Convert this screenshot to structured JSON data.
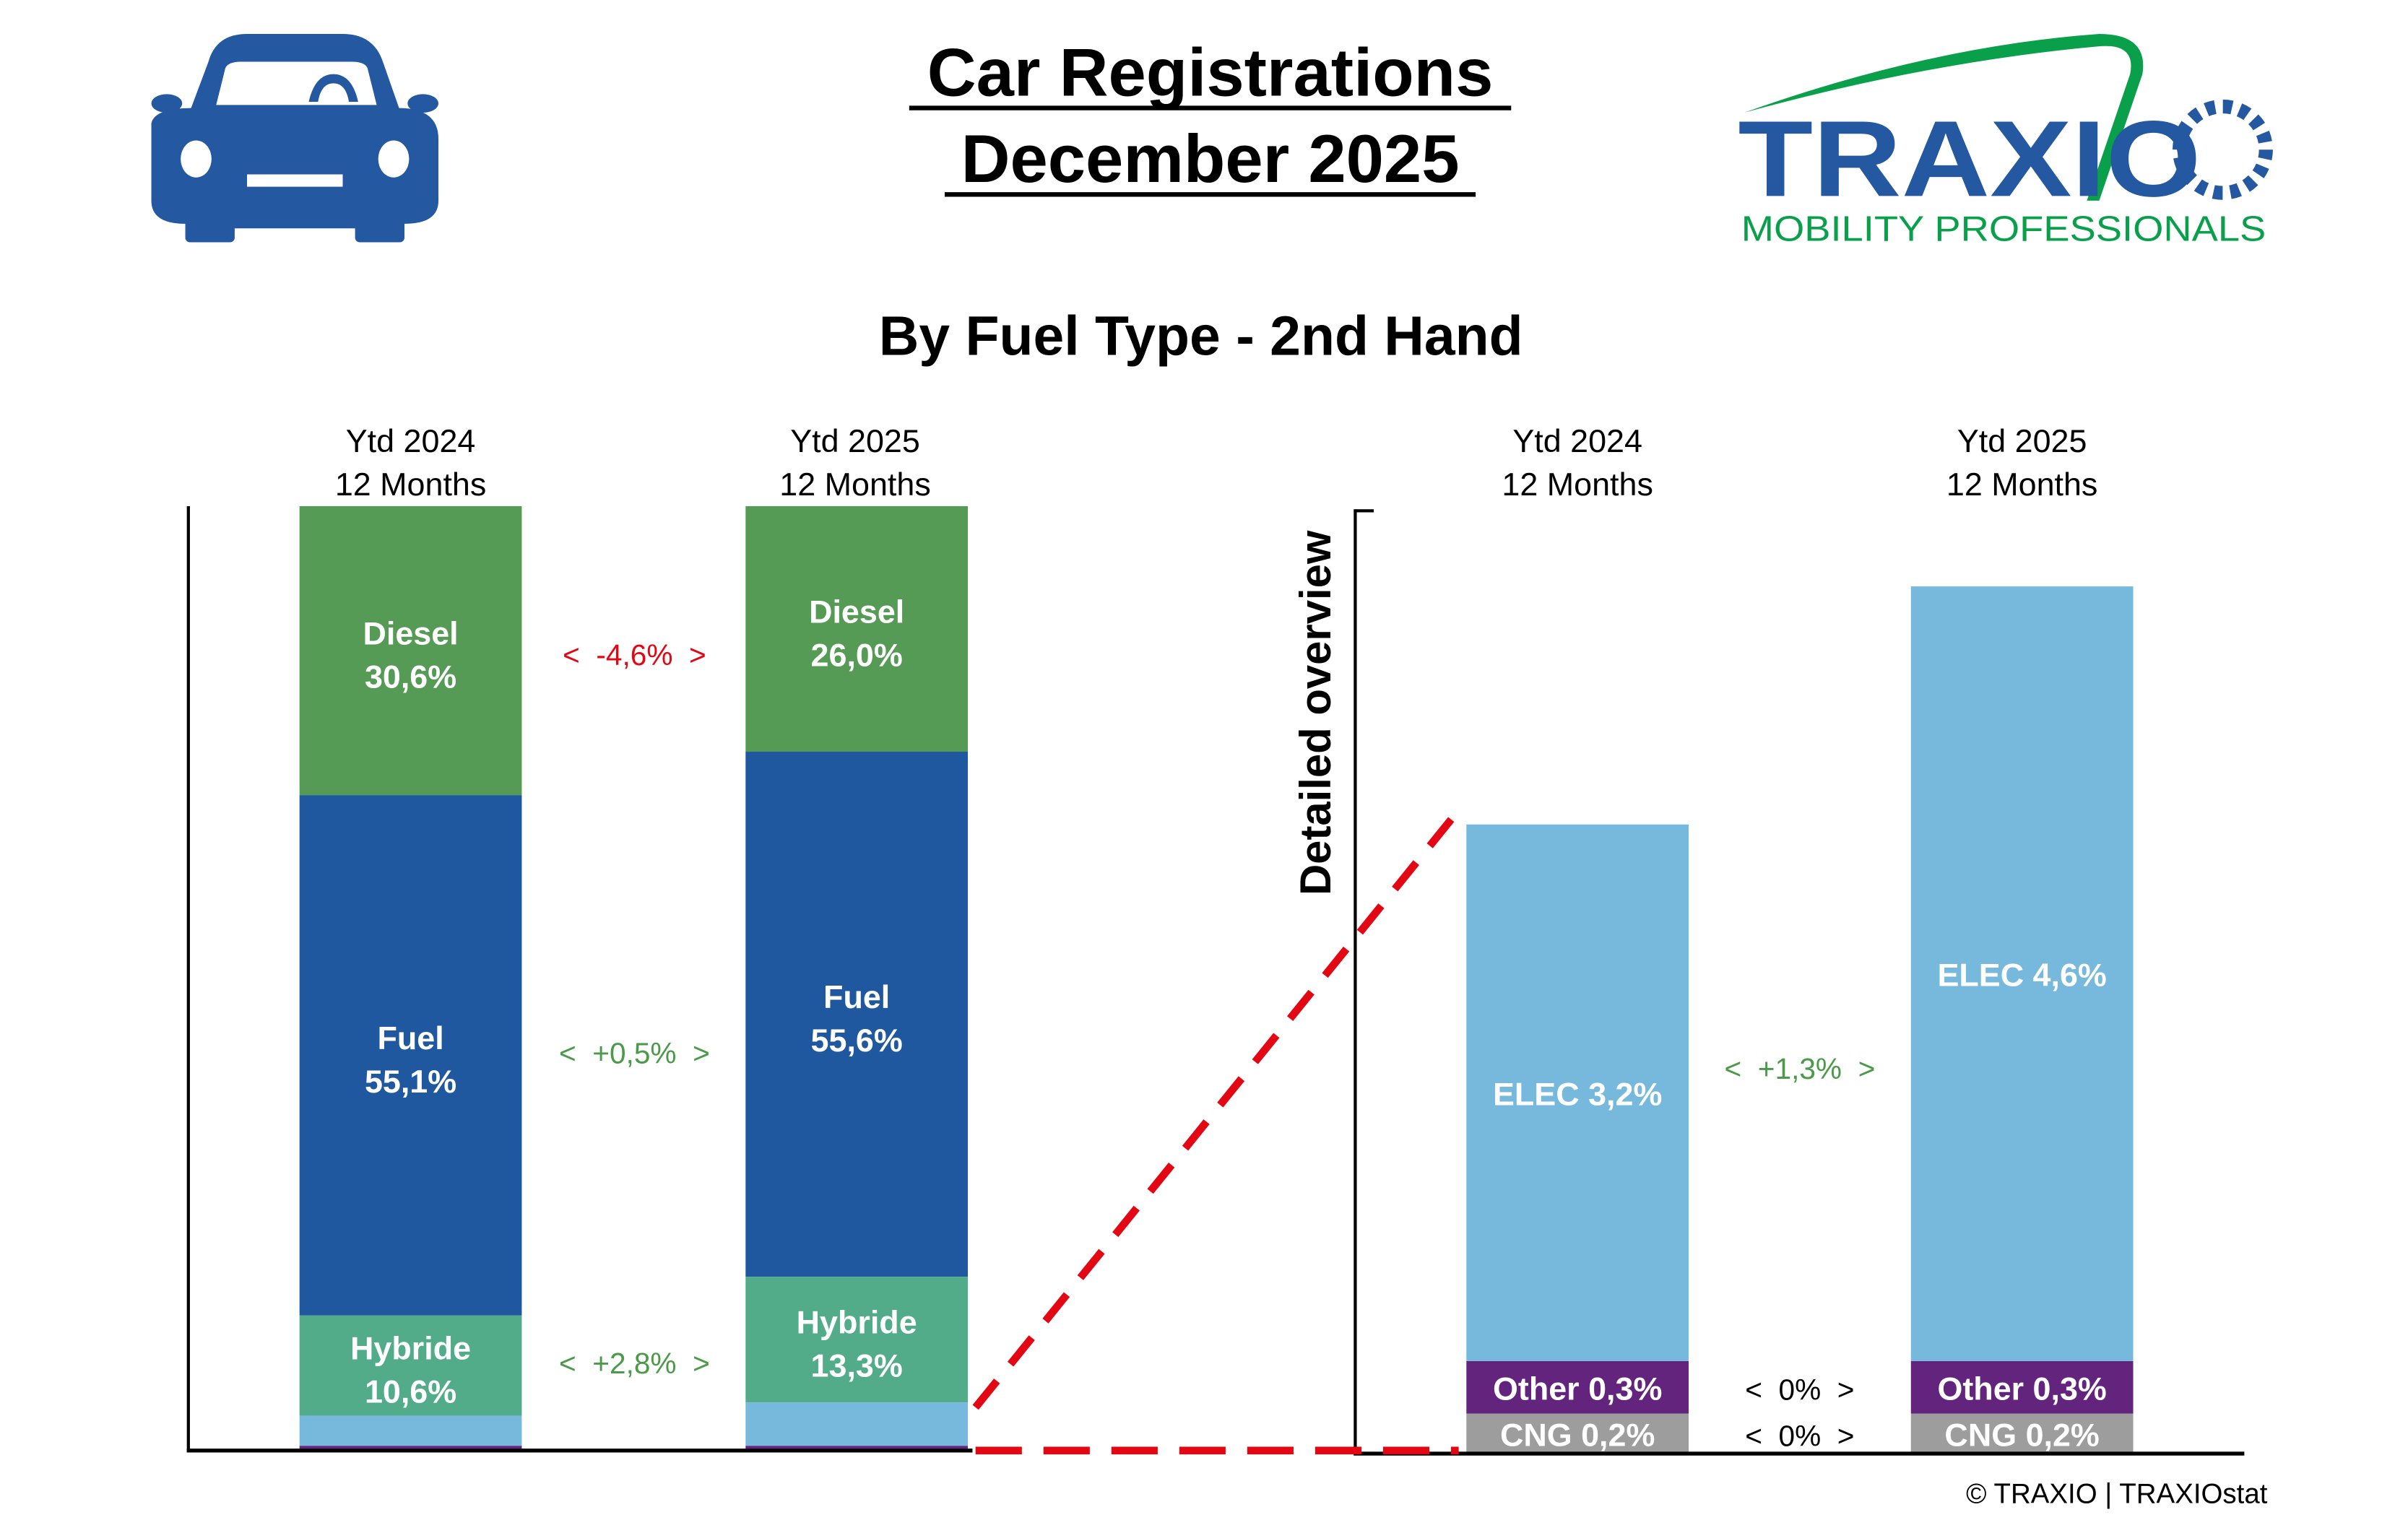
{
  "header": {
    "title_line1": "Car Registrations",
    "title_line2": "December 2025",
    "subtitle": "By Fuel Type - 2nd Hand",
    "logo_text": "TRAXIO",
    "logo_tagline": "MOBILITY PROFESSIONALS",
    "footer": "© TRAXIO | TRAXIOstat",
    "side_label": "Detailed overview"
  },
  "colors": {
    "Diesel": "#559b56",
    "Fuel": "#20589f",
    "Hybride": "#52ac8a",
    "ELEC": "#76b9dd",
    "Other": "#63247e",
    "CNG": "#9d9d9d",
    "negative": "#e30613",
    "positive": "#4a9a4a",
    "brand_blue": "#2458a0",
    "brand_green": "#0aa04b"
  },
  "chart_data": [
    {
      "type": "bar",
      "stacked": true,
      "title": "By Fuel Type - 2nd Hand",
      "categories": [
        {
          "line1": "Ytd 2024",
          "line2": "12 Months"
        },
        {
          "line1": "Ytd 2025",
          "line2": "12 Months"
        }
      ],
      "series": [
        {
          "name": "Diesel",
          "values": [
            30.6,
            26.0
          ],
          "labels": [
            "30,6%",
            "26,0%"
          ]
        },
        {
          "name": "Fuel",
          "values": [
            55.1,
            55.6
          ],
          "labels": [
            "55,1%",
            "55,6%"
          ]
        },
        {
          "name": "Hybride",
          "values": [
            10.6,
            13.3
          ],
          "labels": [
            "10,6%",
            "13,3%"
          ]
        },
        {
          "name": "ELEC",
          "values": [
            3.2,
            4.6
          ]
        },
        {
          "name": "Other",
          "values": [
            0.3,
            0.3
          ]
        },
        {
          "name": "CNG",
          "values": [
            0.2,
            0.2
          ]
        }
      ],
      "changes": [
        {
          "series": "Diesel",
          "text": "<  -4,6%  >",
          "sign": "negative"
        },
        {
          "series": "Fuel",
          "text": "<  +0,5%  >",
          "sign": "positive"
        },
        {
          "series": "Hybride",
          "text": "<  +2,8%  >",
          "sign": "positive"
        }
      ]
    },
    {
      "type": "bar",
      "stacked": true,
      "title": "Detailed overview",
      "categories": [
        {
          "line1": "Ytd 2024",
          "line2": "12 Months"
        },
        {
          "line1": "Ytd 2025",
          "line2": "12 Months"
        }
      ],
      "series": [
        {
          "name": "ELEC",
          "values": [
            3.2,
            4.6
          ],
          "labels": [
            "ELEC 3,2%",
            "ELEC 4,6%"
          ]
        },
        {
          "name": "Other",
          "values": [
            0.3,
            0.3
          ],
          "labels": [
            "Other 0,3%",
            "Other 0,3%"
          ]
        },
        {
          "name": "CNG",
          "values": [
            0.2,
            0.2
          ],
          "labels": [
            "CNG 0,2%",
            "CNG 0,2%"
          ]
        }
      ],
      "changes": [
        {
          "series": "ELEC",
          "text": "<  +1,3%  >",
          "sign": "positive"
        },
        {
          "series": "Other",
          "text": "<  0%  >",
          "sign": "neutral"
        },
        {
          "series": "CNG",
          "text": "<  0%  >",
          "sign": "neutral"
        }
      ]
    }
  ]
}
